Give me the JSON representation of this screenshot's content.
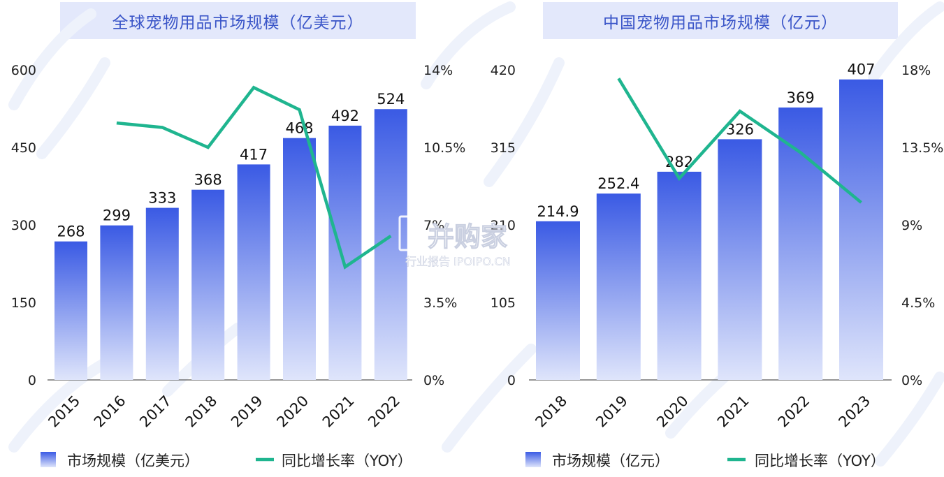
{
  "colors": {
    "title_bg": "#e3e8fb",
    "title_text": "#3a55c8",
    "bar_top": "#3a5ae4",
    "bar_bottom": "#dfe5fb",
    "line": "#1fb58f",
    "axis_text": "#222222"
  },
  "watermark": {
    "brand": "并购家",
    "sub": "行业报告 IPOIPO.CN"
  },
  "chart_data": [
    {
      "type": "bar",
      "title": "全球宠物用品市场规模（亿美元）",
      "categories": [
        "2015",
        "2016",
        "2017",
        "2018",
        "2019",
        "2020",
        "2021",
        "2022"
      ],
      "series": [
        {
          "name": "市场规模（亿美元）",
          "type": "bar",
          "axis": "left",
          "values": [
            268,
            299,
            333,
            368,
            417,
            468,
            492,
            524
          ],
          "labels": [
            "268",
            "299",
            "333",
            "368",
            "417",
            "468",
            "492",
            "524"
          ]
        },
        {
          "name": "同比增长率（YOY）",
          "type": "line",
          "axis": "right",
          "values": [
            null,
            11.6,
            11.4,
            10.5,
            13.2,
            12.2,
            5.1,
            6.5
          ]
        }
      ],
      "ylim": [
        0,
        600
      ],
      "yticks": [
        "0",
        "150",
        "300",
        "450",
        "600"
      ],
      "y2lim": [
        0,
        14
      ],
      "y2ticks": [
        "0%",
        "3.5%",
        "7%",
        "10.5%",
        "14%"
      ],
      "legend": "bottom"
    },
    {
      "type": "bar",
      "title": "中国宠物用品市场规模（亿元）",
      "categories": [
        "2018",
        "2019",
        "2020",
        "2021",
        "2022",
        "2023"
      ],
      "series": [
        {
          "name": "市场规模（亿元）",
          "type": "bar",
          "axis": "left",
          "values": [
            214.9,
            252.4,
            282,
            326,
            369,
            407
          ],
          "labels": [
            "214.9",
            "252.4",
            "282",
            "326",
            "369",
            "407"
          ]
        },
        {
          "name": "同比增长率（YOY）",
          "type": "line",
          "axis": "right",
          "values": [
            null,
            17.5,
            11.7,
            15.6,
            13.2,
            10.3
          ]
        }
      ],
      "ylim": [
        0,
        420
      ],
      "yticks": [
        "0",
        "105",
        "210",
        "315",
        "420"
      ],
      "y2lim": [
        0,
        18
      ],
      "y2ticks": [
        "0%",
        "4.5%",
        "9%",
        "13.5%",
        "18%"
      ],
      "legend": "bottom"
    }
  ]
}
